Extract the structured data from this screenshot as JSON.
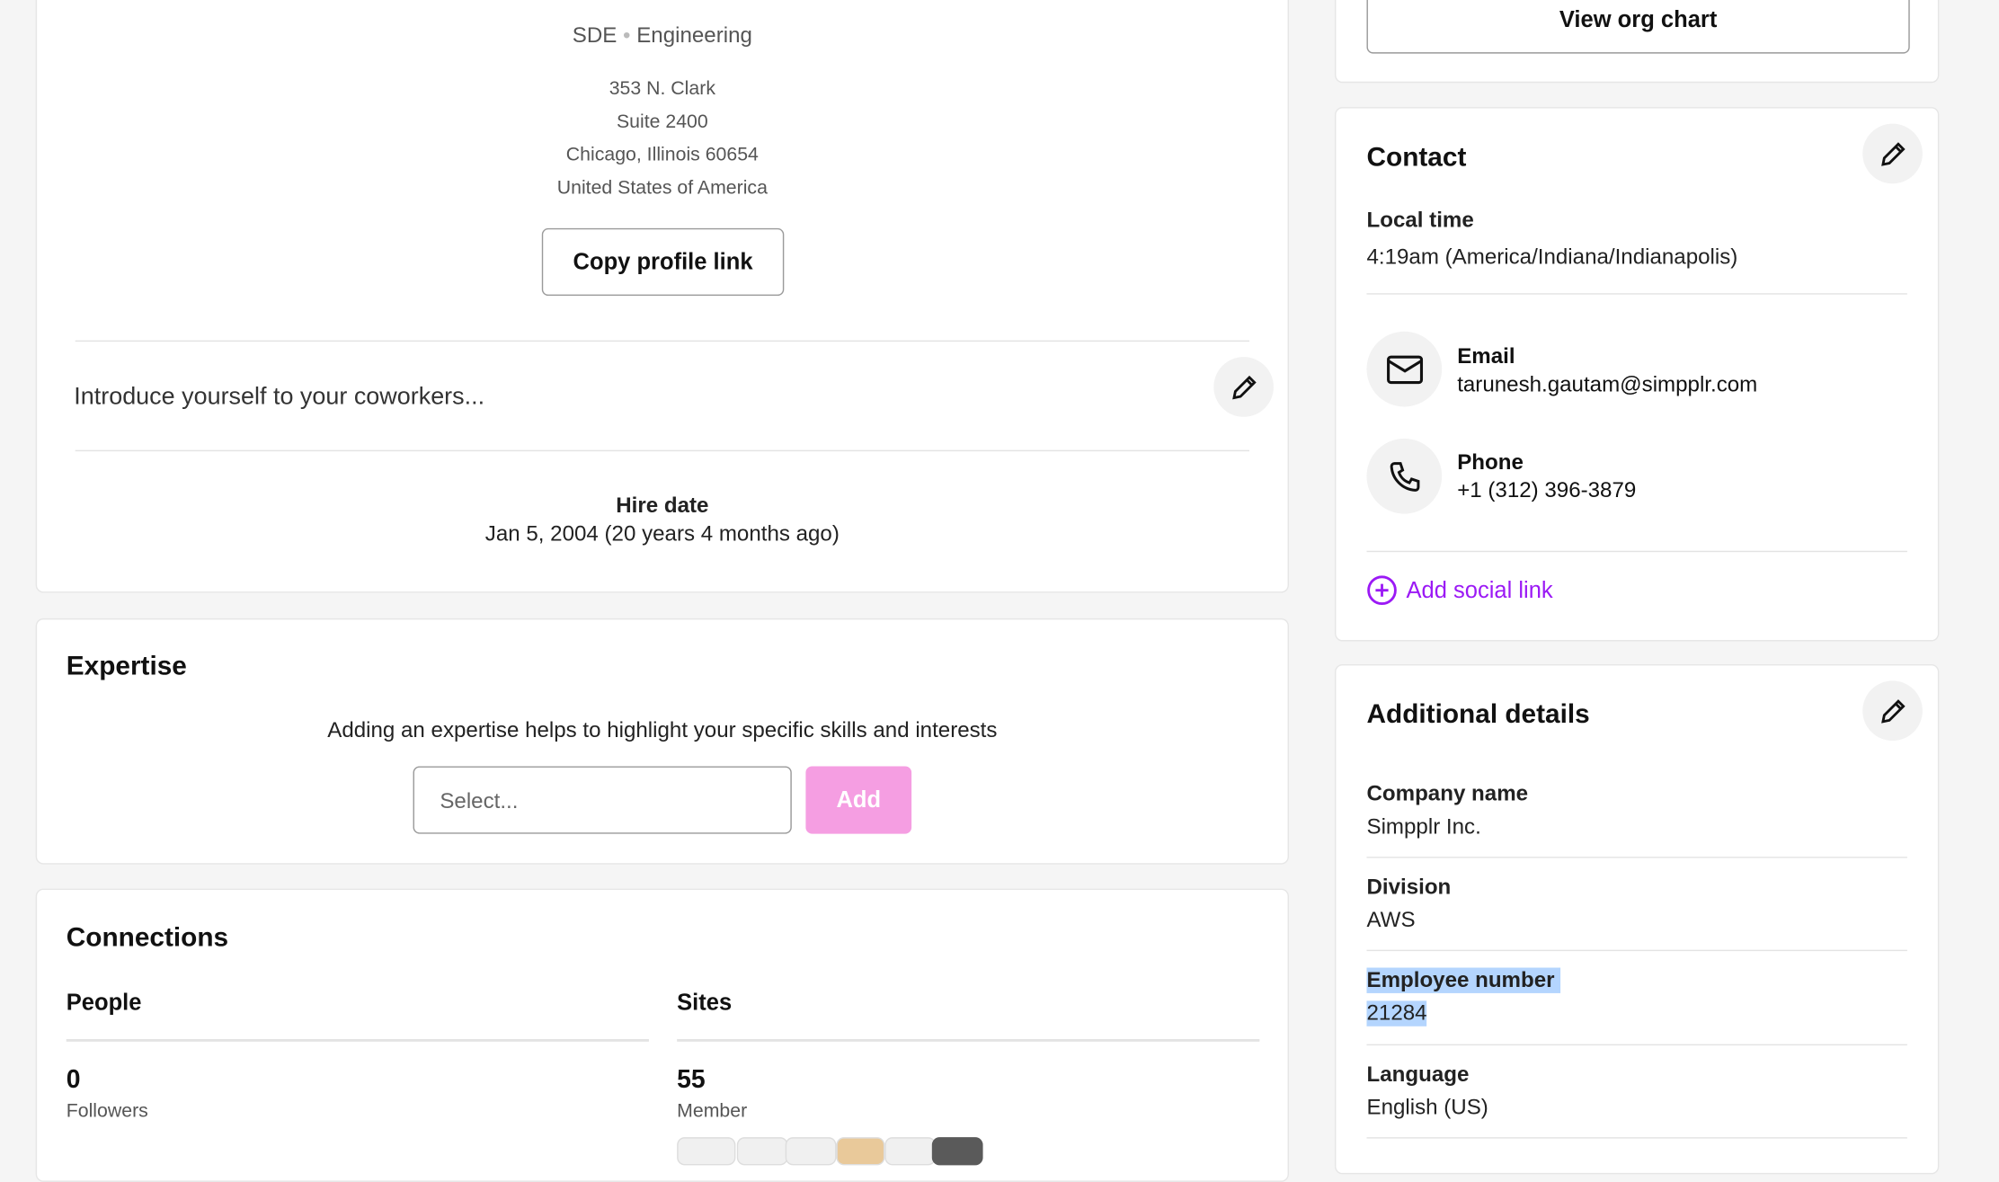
{
  "profile": {
    "title": "SDE",
    "department": "Engineering",
    "address": [
      "353 N. Clark",
      "Suite 2400",
      "Chicago, Illinois 60654",
      "United States of America"
    ],
    "copy_link": "Copy profile link",
    "intro_placeholder": "Introduce yourself to your coworkers...",
    "hire_label": "Hire date",
    "hire_value": "Jan 5, 2004 (20 years 4 months ago)"
  },
  "expertise": {
    "title": "Expertise",
    "hint": "Adding an expertise helps to highlight your specific skills and interests",
    "placeholder": "Select...",
    "add": "Add",
    "add_color": "#f59ee2"
  },
  "connections": {
    "title": "Connections",
    "people": {
      "label": "People",
      "count": "0",
      "sub": "Followers"
    },
    "sites": {
      "label": "Sites",
      "count": "55",
      "sub": "Member"
    }
  },
  "org": {
    "button": "View org chart"
  },
  "contact": {
    "title": "Contact",
    "local_time_label": "Local time",
    "local_time": "4:19am (America/Indiana/Indianapolis)",
    "email_label": "Email",
    "email": "tarunesh.gautam@simpplr.com",
    "phone_label": "Phone",
    "phone": "+1 (312) 396-3879",
    "add_social": "Add social link",
    "accent": "#9b19f5"
  },
  "details": {
    "title": "Additional details",
    "fields": [
      {
        "label": "Company name",
        "value": "Simpplr Inc."
      },
      {
        "label": "Division",
        "value": "AWS"
      },
      {
        "label": "Employee number",
        "value": "21284"
      },
      {
        "label": "Language",
        "value": "English (US)"
      }
    ]
  }
}
